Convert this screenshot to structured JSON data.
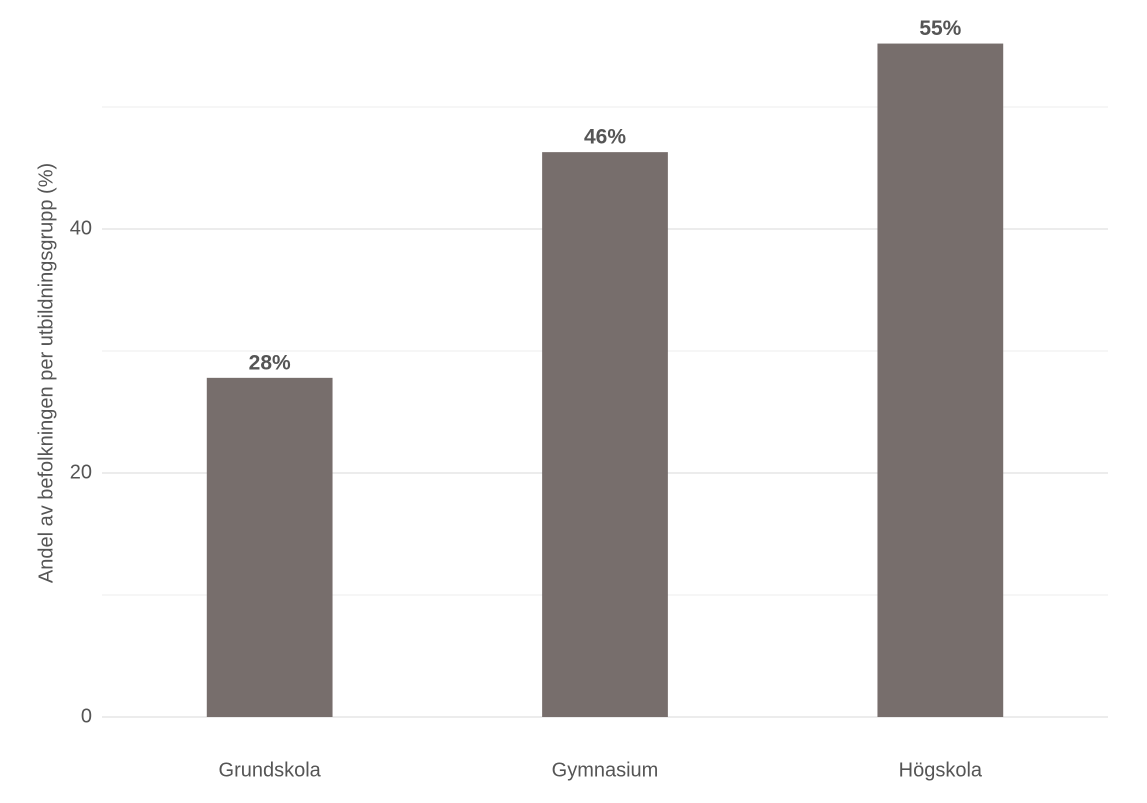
{
  "chart_data": {
    "type": "bar",
    "y_label": "Andel av befolkningen per utbildningsgrupp (%)",
    "categories": [
      "Grundskola",
      "Gymnasium",
      "Högskola"
    ],
    "values": [
      27.8,
      46.3,
      55.2
    ],
    "value_labels": [
      "28%",
      "46%",
      "55%"
    ],
    "color": "#776e6c",
    "ylim": [
      0,
      57
    ],
    "yticks": [
      0,
      20,
      40
    ],
    "minor_yticks": [
      10,
      30,
      50
    ],
    "grid": true
  }
}
